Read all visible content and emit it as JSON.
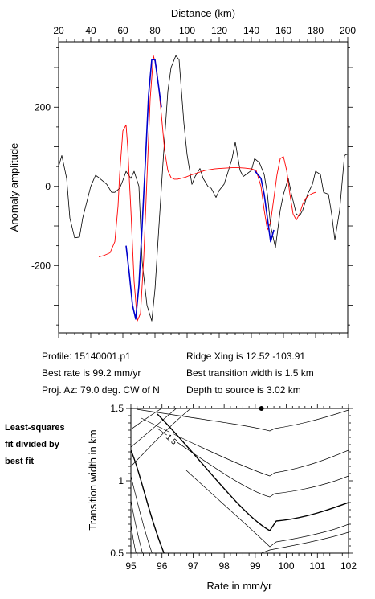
{
  "chart_data": [
    {
      "type": "line",
      "xlabel": "Distance (km)",
      "ylabel": "Anomaly amplitude",
      "xlim": [
        20,
        200
      ],
      "ylim": [
        -370,
        365
      ],
      "xticks": [
        20,
        40,
        60,
        80,
        100,
        120,
        140,
        160,
        180,
        200
      ],
      "yticks": [
        -200,
        0,
        200
      ],
      "series": [
        {
          "color": "#000000",
          "x": [
            20,
            22,
            25,
            27,
            30,
            33,
            35,
            40,
            43,
            45,
            50,
            53,
            55,
            58,
            60,
            62,
            65,
            67,
            70,
            72,
            75,
            78,
            80,
            82,
            85,
            88,
            90,
            93,
            95,
            98,
            100,
            103,
            105,
            108,
            110,
            113,
            115,
            118,
            120,
            123,
            125,
            128,
            130,
            133,
            135,
            140,
            142,
            145,
            148,
            150,
            152,
            155,
            158,
            160,
            163,
            165,
            168,
            170,
            172,
            175,
            178,
            180,
            183,
            185,
            188,
            190,
            192,
            195,
            198,
            200
          ],
          "y": [
            50,
            78,
            20,
            -80,
            -130,
            -128,
            -80,
            0,
            28,
            22,
            5,
            -15,
            -15,
            -5,
            15,
            38,
            20,
            38,
            0,
            -190,
            -300,
            -340,
            -260,
            -130,
            60,
            240,
            300,
            330,
            320,
            160,
            80,
            5,
            25,
            45,
            20,
            0,
            -5,
            -28,
            -10,
            5,
            30,
            70,
            112,
            40,
            25,
            40,
            70,
            60,
            30,
            -20,
            -100,
            -155,
            -60,
            -20,
            20,
            -20,
            -70,
            -75,
            -60,
            -20,
            5,
            38,
            30,
            -15,
            -20,
            -70,
            -135,
            -60,
            78,
            82
          ]
        },
        {
          "color": "#ff0000",
          "x": [
            45,
            48,
            52,
            55,
            57,
            58,
            60,
            62,
            63,
            65,
            67,
            69,
            71,
            73,
            75,
            77,
            79,
            81,
            84,
            86,
            88,
            90,
            92,
            94,
            96,
            99,
            102,
            105,
            108,
            111,
            114,
            117,
            120,
            124,
            128,
            132,
            136,
            140,
            143,
            146,
            148,
            150,
            152,
            154,
            156,
            158,
            160,
            162,
            164,
            166,
            168,
            170,
            172,
            174,
            176,
            178,
            180
          ],
          "y": [
            -178,
            -175,
            -168,
            -140,
            -50,
            30,
            140,
            155,
            100,
            -60,
            -240,
            -340,
            -320,
            -180,
            20,
            220,
            330,
            300,
            180,
            90,
            40,
            22,
            18,
            18,
            20,
            23,
            28,
            32,
            36,
            40,
            42,
            44,
            45,
            46,
            47,
            47,
            46,
            44,
            40,
            0,
            -60,
            -110,
            -90,
            -30,
            30,
            70,
            75,
            40,
            -20,
            -70,
            -85,
            -70,
            -45,
            -30,
            -22,
            -18,
            -15
          ]
        },
        {
          "color": "#0000cc",
          "x": [
            62,
            64,
            66,
            68,
            70,
            72,
            74,
            76,
            78,
            80,
            82,
            84,
            142,
            144,
            146,
            148,
            150,
            152,
            154
          ],
          "y": [
            -150,
            -220,
            -300,
            -335,
            -250,
            -100,
            60,
            230,
            320,
            320,
            260,
            200,
            40,
            30,
            20,
            -20,
            -80,
            -140,
            -110
          ]
        }
      ]
    },
    {
      "type": "contour",
      "xlabel": "Rate in mm/yr",
      "ylabel": "Transition width in km",
      "xlim": [
        95,
        102
      ],
      "ylim": [
        0.5,
        1.5
      ],
      "xticks": [
        95,
        96,
        97,
        98,
        99,
        100,
        101,
        102
      ],
      "yticks": [
        0.5,
        1.0,
        1.5
      ],
      "contour_label": "1.5",
      "best_fit_marker": {
        "x": 99.2,
        "y": 1.5
      }
    }
  ],
  "info": {
    "profile": "Profile: 15140001.p1",
    "best_rate": "Best rate is 99.2 mm/yr",
    "proj_az": "Proj. Az: 79.0 deg. CW of N",
    "ridge_xing": "Ridge Xing is 12.52 -103.91",
    "best_width": "Best transition width is 1.5 km",
    "depth": "Depth to source is   3.02 km"
  },
  "side_note": [
    "Least-squares",
    "fit divided by",
    "best fit"
  ]
}
